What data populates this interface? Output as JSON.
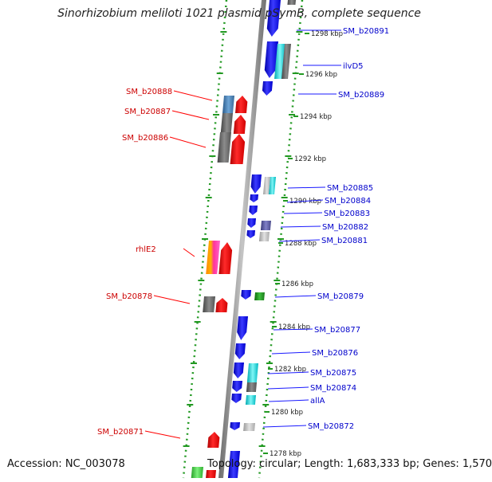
{
  "title": "Sinorhizobium meliloti 1021 plasmid pSymB, complete sequence",
  "footer": {
    "accession": "Accession: NC_003078",
    "topology": "Topology: circular; Length: 1,683,333 bp; Genes: 1,570"
  },
  "colors": {
    "forward_gene": "#ff0000",
    "reverse_gene": "#1a1aff",
    "forward_label": "#cc0000",
    "reverse_label": "#0000cc",
    "ruler": "#229922",
    "backbone": "#8a8a8a"
  },
  "ruler_ticks": [
    "1298 kbp",
    "1296 kbp",
    "1294 kbp",
    "1292 kbp",
    "1290 kbp",
    "1288 kbp",
    "1286 kbp",
    "1284 kbp",
    "1282 kbp",
    "1280 kbp",
    "1278 kbp"
  ],
  "forward_labels": [
    "SM_b20888",
    "SM_b20887",
    "SM_b20886",
    "rhlE2",
    "SM_b20878",
    "SM_b20871"
  ],
  "reverse_labels": [
    "SM_b20891",
    "ilvD5",
    "SM_b20889",
    "SM_b20885",
    "SM_b20884",
    "SM_b20883",
    "SM_b20882",
    "SM_b20881",
    "SM_b20879",
    "SM_b20877",
    "SM_b20876",
    "SM_b20875",
    "SM_b20874",
    "allA",
    "SM_b20872"
  ]
}
